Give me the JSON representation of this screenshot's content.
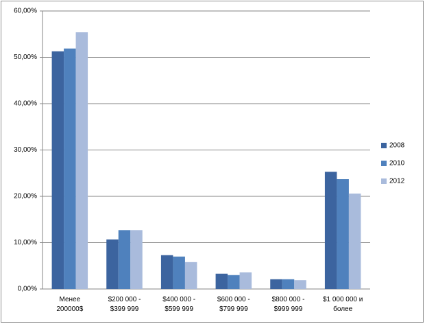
{
  "chart_data": {
    "type": "bar",
    "categories": [
      "Менее\n200000$",
      "$200 000 -\n$399 999",
      "$400 000 -\n$599 999",
      "$600 000 -\n$799 999",
      "$800 000 -\n$999 999",
      "$1 000 000 и\nболее"
    ],
    "series": [
      {
        "name": "2008",
        "color": "#3c649f",
        "values": [
          51.3,
          10.7,
          7.3,
          3.3,
          2.1,
          25.3
        ]
      },
      {
        "name": "2010",
        "color": "#4f81bd",
        "values": [
          51.9,
          12.7,
          7.0,
          3.0,
          2.1,
          23.7
        ]
      },
      {
        "name": "2012",
        "color": "#a9bbdc",
        "values": [
          55.4,
          12.7,
          5.8,
          3.6,
          1.9,
          20.6
        ]
      }
    ],
    "ylim": [
      0,
      60
    ],
    "yticks": [
      {
        "value": 0,
        "label": "0,00%"
      },
      {
        "value": 10,
        "label": "10,00%"
      },
      {
        "value": 20,
        "label": "20,00%"
      },
      {
        "value": 30,
        "label": "30,00%"
      },
      {
        "value": 40,
        "label": "40,00%"
      },
      {
        "value": 50,
        "label": "50,00%"
      },
      {
        "value": 60,
        "label": "60,00%"
      }
    ],
    "grid": true,
    "legend": "right"
  }
}
